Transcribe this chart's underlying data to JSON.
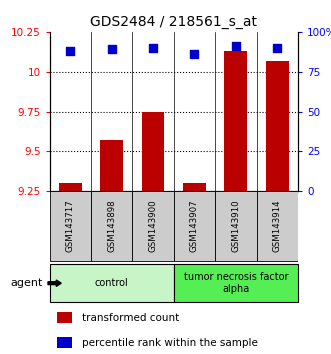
{
  "title": "GDS2484 / 218561_s_at",
  "samples": [
    "GSM143717",
    "GSM143898",
    "GSM143900",
    "GSM143907",
    "GSM143910",
    "GSM143914"
  ],
  "transformed_counts": [
    9.3,
    9.57,
    9.75,
    9.3,
    10.13,
    10.07
  ],
  "percentile_ranks": [
    88,
    89,
    90,
    86,
    91,
    90
  ],
  "ylim_left": [
    9.25,
    10.25
  ],
  "ylim_right": [
    0,
    100
  ],
  "yticks_left": [
    9.25,
    9.5,
    9.75,
    10.0,
    10.25
  ],
  "yticks_right": [
    0,
    25,
    50,
    75,
    100
  ],
  "ytick_labels_left": [
    "9.25",
    "9.5",
    "9.75",
    "10",
    "10.25"
  ],
  "ytick_labels_right": [
    "0",
    "25",
    "50",
    "75",
    "100%"
  ],
  "groups": [
    {
      "label": "control",
      "indices": [
        0,
        1,
        2
      ],
      "color": "#c8f5c8"
    },
    {
      "label": "tumor necrosis factor\nalpha",
      "indices": [
        3,
        4,
        5
      ],
      "color": "#55ee55"
    }
  ],
  "bar_color": "#bb0000",
  "dot_color": "#0000cc",
  "bar_width": 0.55,
  "dot_size": 40,
  "agent_label": "agent",
  "legend_bar_label": "transformed count",
  "legend_dot_label": "percentile rank within the sample",
  "sample_box_color": "#cccccc",
  "grid_linestyle": "dotted"
}
